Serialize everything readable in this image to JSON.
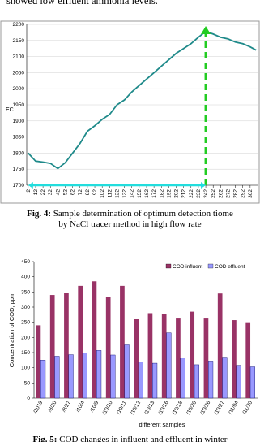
{
  "intro_text": "showed low effluent ammonia levels.",
  "chart_data": [
    {
      "type": "line",
      "y_label": "EC",
      "color": "#1f8a8a",
      "x": [
        2,
        12,
        22,
        32,
        42,
        52,
        62,
        72,
        82,
        92,
        102,
        112,
        122,
        132,
        142,
        152,
        162,
        172,
        182,
        192,
        202,
        212,
        222,
        232,
        242,
        252,
        262,
        272,
        282,
        292,
        302,
        310
      ],
      "values": [
        1800,
        1775,
        1772,
        1768,
        1752,
        1770,
        1800,
        1830,
        1868,
        1885,
        1905,
        1920,
        1950,
        1965,
        1990,
        2010,
        2030,
        2050,
        2070,
        2090,
        2110,
        2125,
        2140,
        2160,
        2178,
        2170,
        2160,
        2155,
        2145,
        2140,
        2130,
        2120
      ],
      "xlim": [
        0,
        312
      ],
      "ylim": [
        1700,
        2200
      ],
      "xticks": [
        2,
        12,
        22,
        32,
        42,
        52,
        62,
        72,
        82,
        92,
        102,
        112,
        122,
        132,
        142,
        152,
        162,
        172,
        182,
        192,
        202,
        212,
        222,
        232,
        242,
        252,
        262,
        272,
        282,
        292,
        302
      ],
      "yticks": [
        1700,
        1750,
        1800,
        1850,
        1900,
        1950,
        2000,
        2050,
        2100,
        2150,
        2200
      ],
      "marker_x": 242,
      "grid": true
    },
    {
      "type": "bar",
      "y_label": "Concentration of COD, ppm",
      "x_label": "different samples",
      "categories": [
        "/2019",
        "/8/20",
        "/8/27",
        "/10/4",
        "/10/9",
        "/10/10",
        "/10/11",
        "/10/12",
        "/10/13",
        "/10/16",
        "/10/18",
        "/10/20",
        "/10/26",
        "/10/27",
        "/11/04",
        "/11/20"
      ],
      "series": [
        {
          "name": "COD influent",
          "color": "#993366",
          "values": [
            240,
            340,
            348,
            370,
            385,
            333,
            370,
            260,
            280,
            277,
            265,
            285,
            265,
            345,
            257,
            250
          ]
        },
        {
          "name": "COD effluent",
          "color": "#9999ff",
          "values": [
            125,
            138,
            143,
            148,
            157,
            142,
            178,
            120,
            115,
            215,
            133,
            110,
            122,
            135,
            108,
            103
          ]
        }
      ],
      "ylim": [
        0,
        450
      ],
      "yticks": [
        0,
        50,
        100,
        150,
        200,
        250,
        300,
        350,
        400,
        450
      ],
      "legend": "top-right"
    }
  ],
  "captions": [
    {
      "label": "Fig. 4:",
      "text": "Sample determination of optimum detection tiome by NaCl tracer method in high flow rate"
    },
    {
      "label": "Fig. 5:",
      "text": "COD changes in influent and effluent in winter"
    }
  ]
}
